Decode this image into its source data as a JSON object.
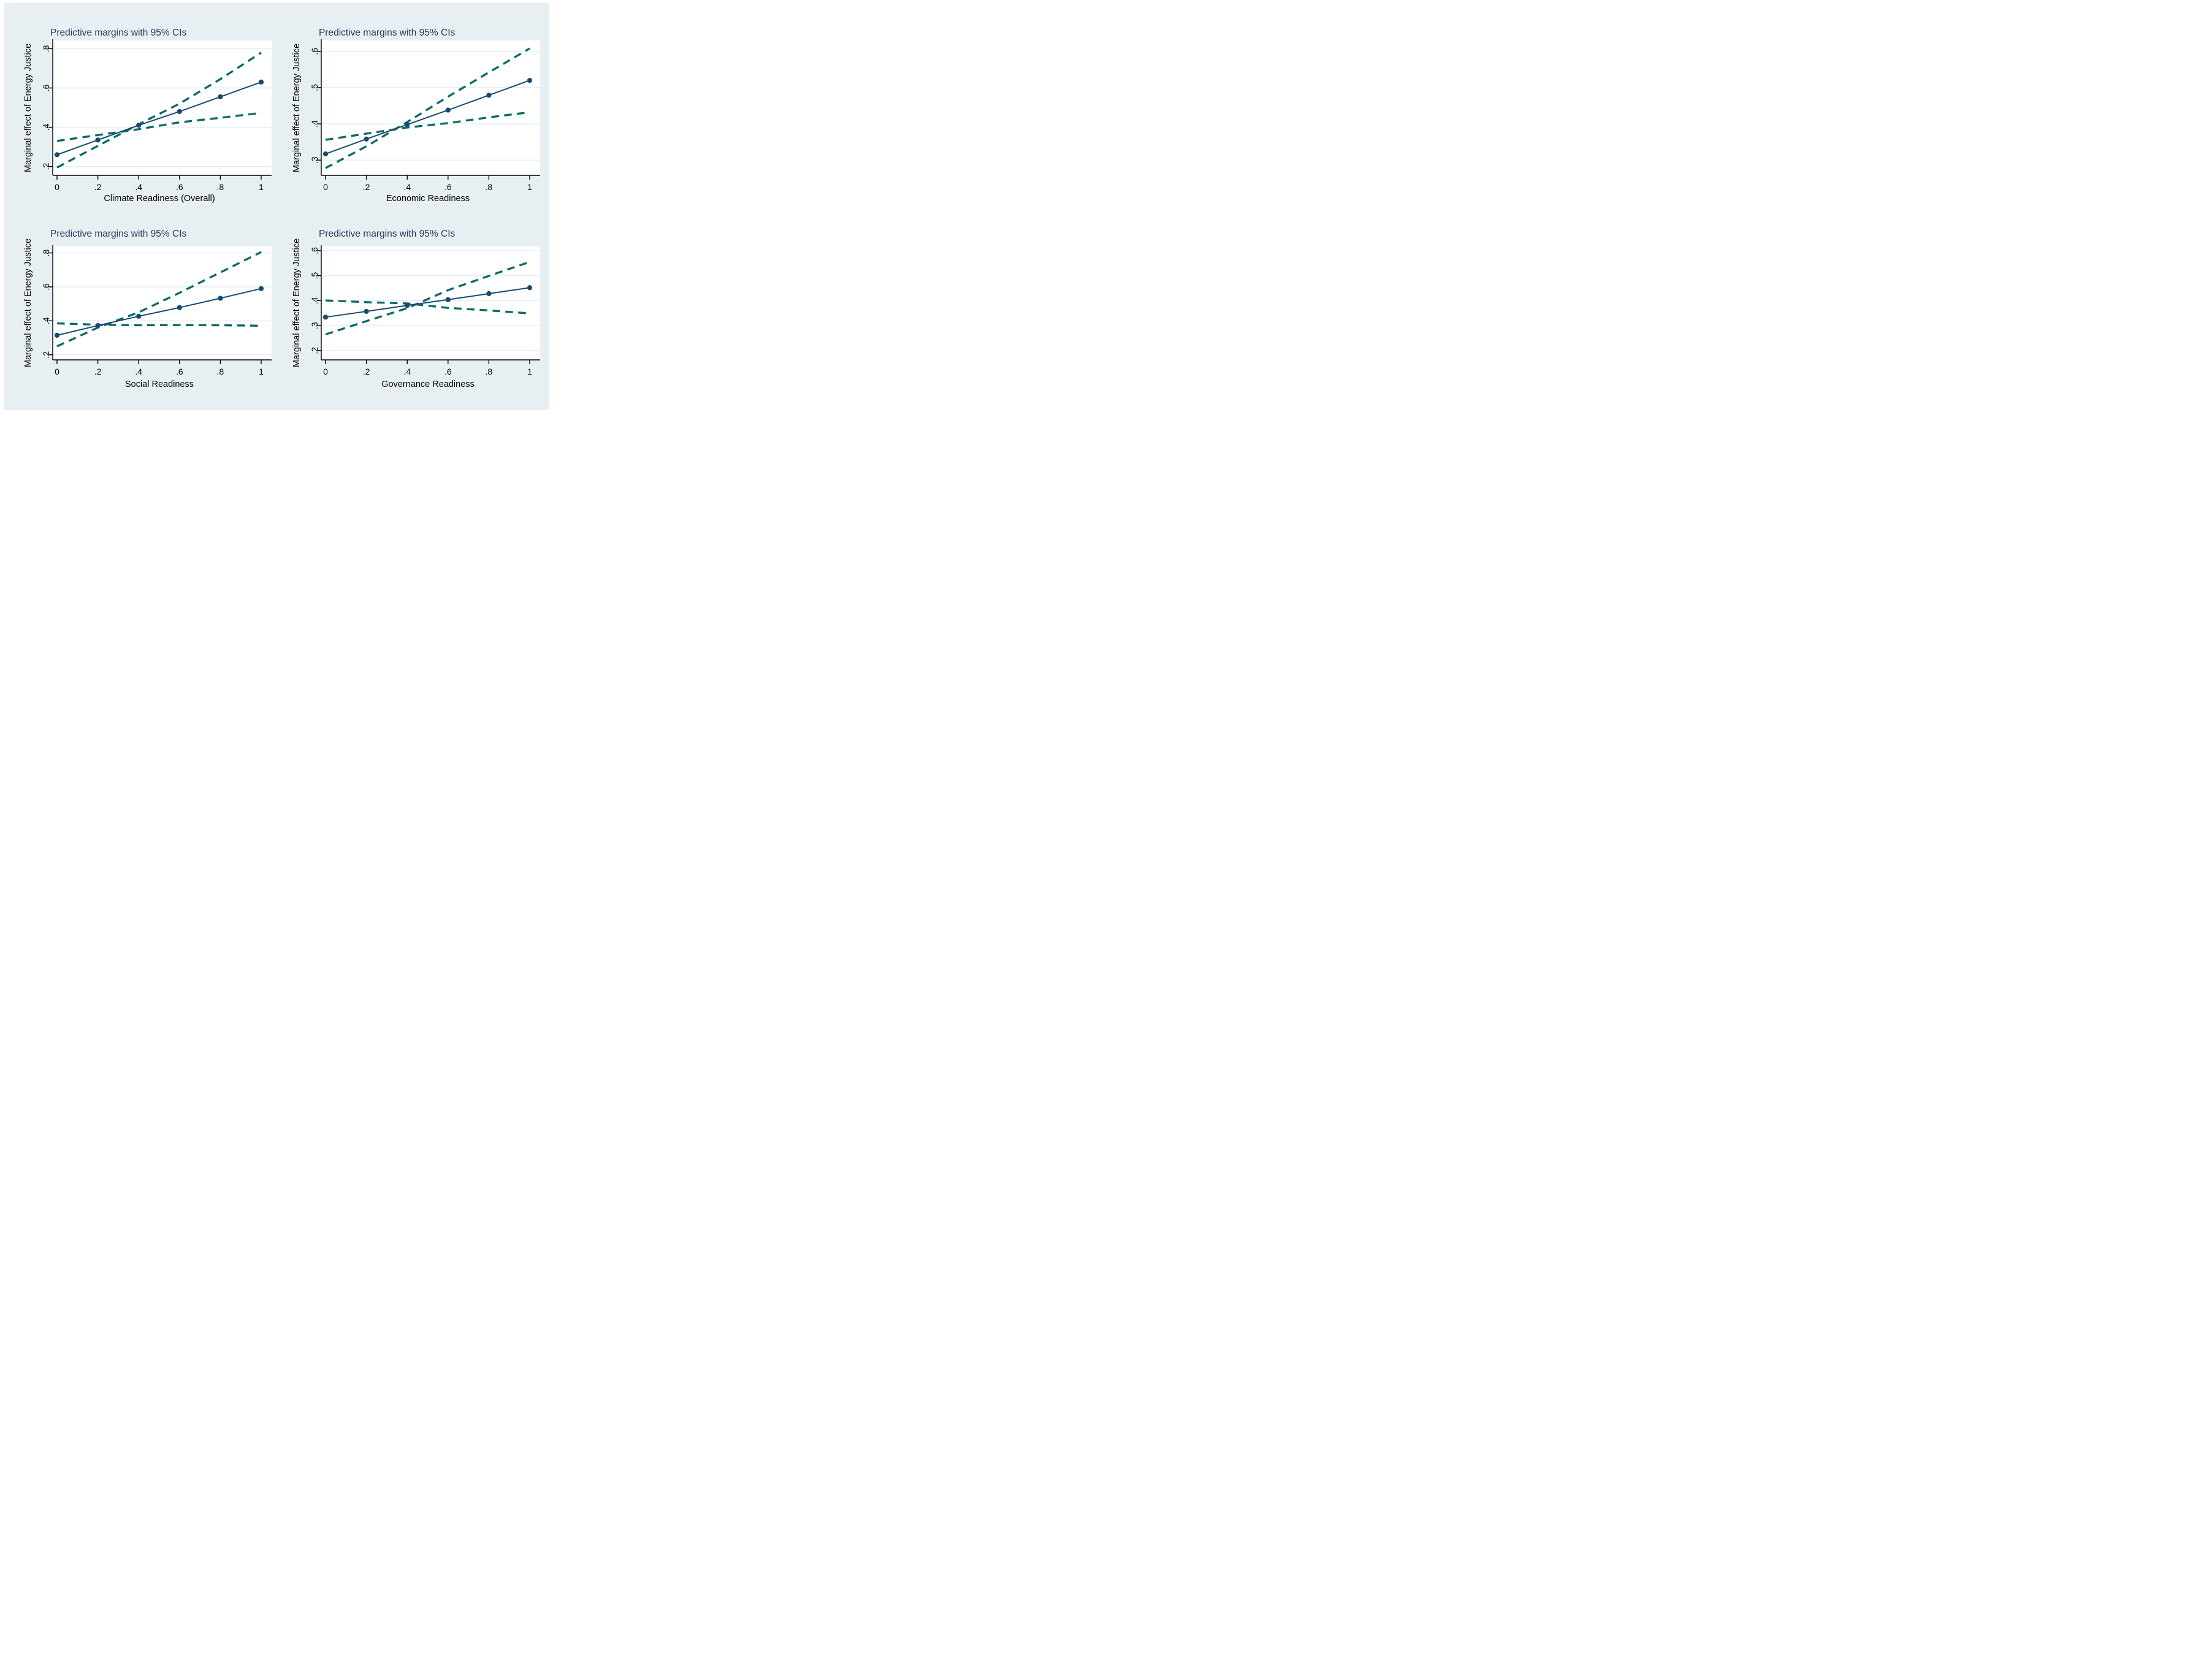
{
  "figure": {
    "kind": "stata-style 2x2 margins plot figure",
    "panel_count": 4
  },
  "colors": {
    "page_background": "#ffffff",
    "figure_background": "#E8EFF2",
    "plot_background": "#ffffff",
    "gridline": "#E3EDF3",
    "axis_and_text": "#000000",
    "panel_title": "#1E3A5A",
    "fit_line_and_markers": "#164A70",
    "ci_dashed": "#0C6C66"
  },
  "chart_data": [
    {
      "type": "line",
      "title": "Predictive margins with 95% CIs",
      "xlabel": "Climate Readiness (Overall)",
      "ylabel": "Marginal effect of Energy Justice",
      "x": [
        0,
        0.2,
        0.4,
        0.6,
        0.8,
        1
      ],
      "xtick_labels": [
        "0",
        ".2",
        ".4",
        ".6",
        ".8",
        "1"
      ],
      "yticks": [
        0.2,
        0.4,
        0.6,
        0.8
      ],
      "ytick_labels": [
        ".2",
        ".4",
        ".6",
        ".8"
      ],
      "ylim": [
        0.155,
        0.842
      ],
      "grid": true,
      "legend": "none",
      "series": [
        {
          "name": "Predictive margin",
          "role": "fit",
          "values": [
            0.26,
            0.335,
            0.41,
            0.48,
            0.555,
            0.63
          ]
        },
        {
          "name": "95% CI bound A (steep dashed)",
          "role": "ci",
          "values": [
            0.195,
            0.305,
            0.415,
            0.52,
            0.645,
            0.78
          ]
        },
        {
          "name": "95% CI bound B (shallow dashed)",
          "role": "ci",
          "values": [
            0.33,
            0.36,
            0.39,
            0.425,
            0.448,
            0.473
          ]
        }
      ]
    },
    {
      "type": "line",
      "title": "Predictive margins with 95% CIs",
      "xlabel": "Economic Readiness",
      "ylabel": "Marginal effect of Energy Justice",
      "x": [
        0,
        0.2,
        0.4,
        0.6,
        0.8,
        1
      ],
      "xtick_labels": [
        "0",
        ".2",
        ".4",
        ".6",
        ".8",
        "1"
      ],
      "yticks": [
        0.3,
        0.4,
        0.5,
        0.6
      ],
      "ytick_labels": [
        ".3",
        ".4",
        ".5",
        ".6"
      ],
      "ylim": [
        0.258,
        0.63
      ],
      "grid": true,
      "legend": "none",
      "series": [
        {
          "name": "Predictive margin",
          "role": "fit",
          "values": [
            0.317,
            0.358,
            0.398,
            0.438,
            0.479,
            0.52
          ]
        },
        {
          "name": "95% CI bound A (steep dashed)",
          "role": "ci",
          "values": [
            0.278,
            0.338,
            0.405,
            0.475,
            0.542,
            0.608
          ]
        },
        {
          "name": "95% CI bound B (shallow dashed)",
          "role": "ci",
          "values": [
            0.356,
            0.373,
            0.39,
            0.402,
            0.418,
            0.432
          ]
        }
      ]
    },
    {
      "type": "line",
      "title": "Predictive margins with 95% CIs",
      "xlabel": "Social Readiness",
      "ylabel": "Marginal effect of Energy Justice",
      "x": [
        0,
        0.2,
        0.4,
        0.6,
        0.8,
        1
      ],
      "xtick_labels": [
        "0",
        ".2",
        ".4",
        ".6",
        ".8",
        "1"
      ],
      "yticks": [
        0.2,
        0.4,
        0.6,
        0.8
      ],
      "ytick_labels": [
        ".2",
        ".4",
        ".6",
        ".8"
      ],
      "ylim": [
        0.17,
        0.838
      ],
      "grid": true,
      "legend": "none",
      "series": [
        {
          "name": "Predictive margin",
          "role": "fit",
          "values": [
            0.315,
            0.372,
            0.427,
            0.478,
            0.533,
            0.59
          ]
        },
        {
          "name": "95% CI bound A (steep dashed)",
          "role": "ci",
          "values": [
            0.25,
            0.36,
            0.45,
            0.565,
            0.685,
            0.805
          ]
        },
        {
          "name": "95% CI bound B (shallow dashed)",
          "role": "ci",
          "values": [
            0.385,
            0.377,
            0.374,
            0.375,
            0.374,
            0.371
          ]
        }
      ]
    },
    {
      "type": "line",
      "title": "Predictive margins with 95% CIs",
      "xlabel": "Governance Readiness",
      "ylabel": "Marginal effect of Energy Justice",
      "x": [
        0,
        0.2,
        0.4,
        0.6,
        0.8,
        1
      ],
      "xtick_labels": [
        "0",
        ".2",
        ".4",
        ".6",
        ".8",
        "1"
      ],
      "yticks": [
        0.2,
        0.3,
        0.4,
        0.5,
        0.6
      ],
      "ytick_labels": [
        ".2",
        ".3",
        ".4",
        ".5",
        ".6"
      ],
      "ylim": [
        0.163,
        0.617
      ],
      "grid": true,
      "legend": "none",
      "series": [
        {
          "name": "Predictive margin",
          "role": "fit",
          "values": [
            0.334,
            0.357,
            0.381,
            0.404,
            0.428,
            0.452
          ]
        },
        {
          "name": "95% CI bound A (steep dashed)",
          "role": "ci",
          "values": [
            0.265,
            0.318,
            0.37,
            0.442,
            0.499,
            0.555
          ]
        },
        {
          "name": "95% CI bound B (shallow dashed)",
          "role": "ci",
          "values": [
            0.401,
            0.394,
            0.389,
            0.371,
            0.361,
            0.349
          ]
        }
      ]
    }
  ]
}
